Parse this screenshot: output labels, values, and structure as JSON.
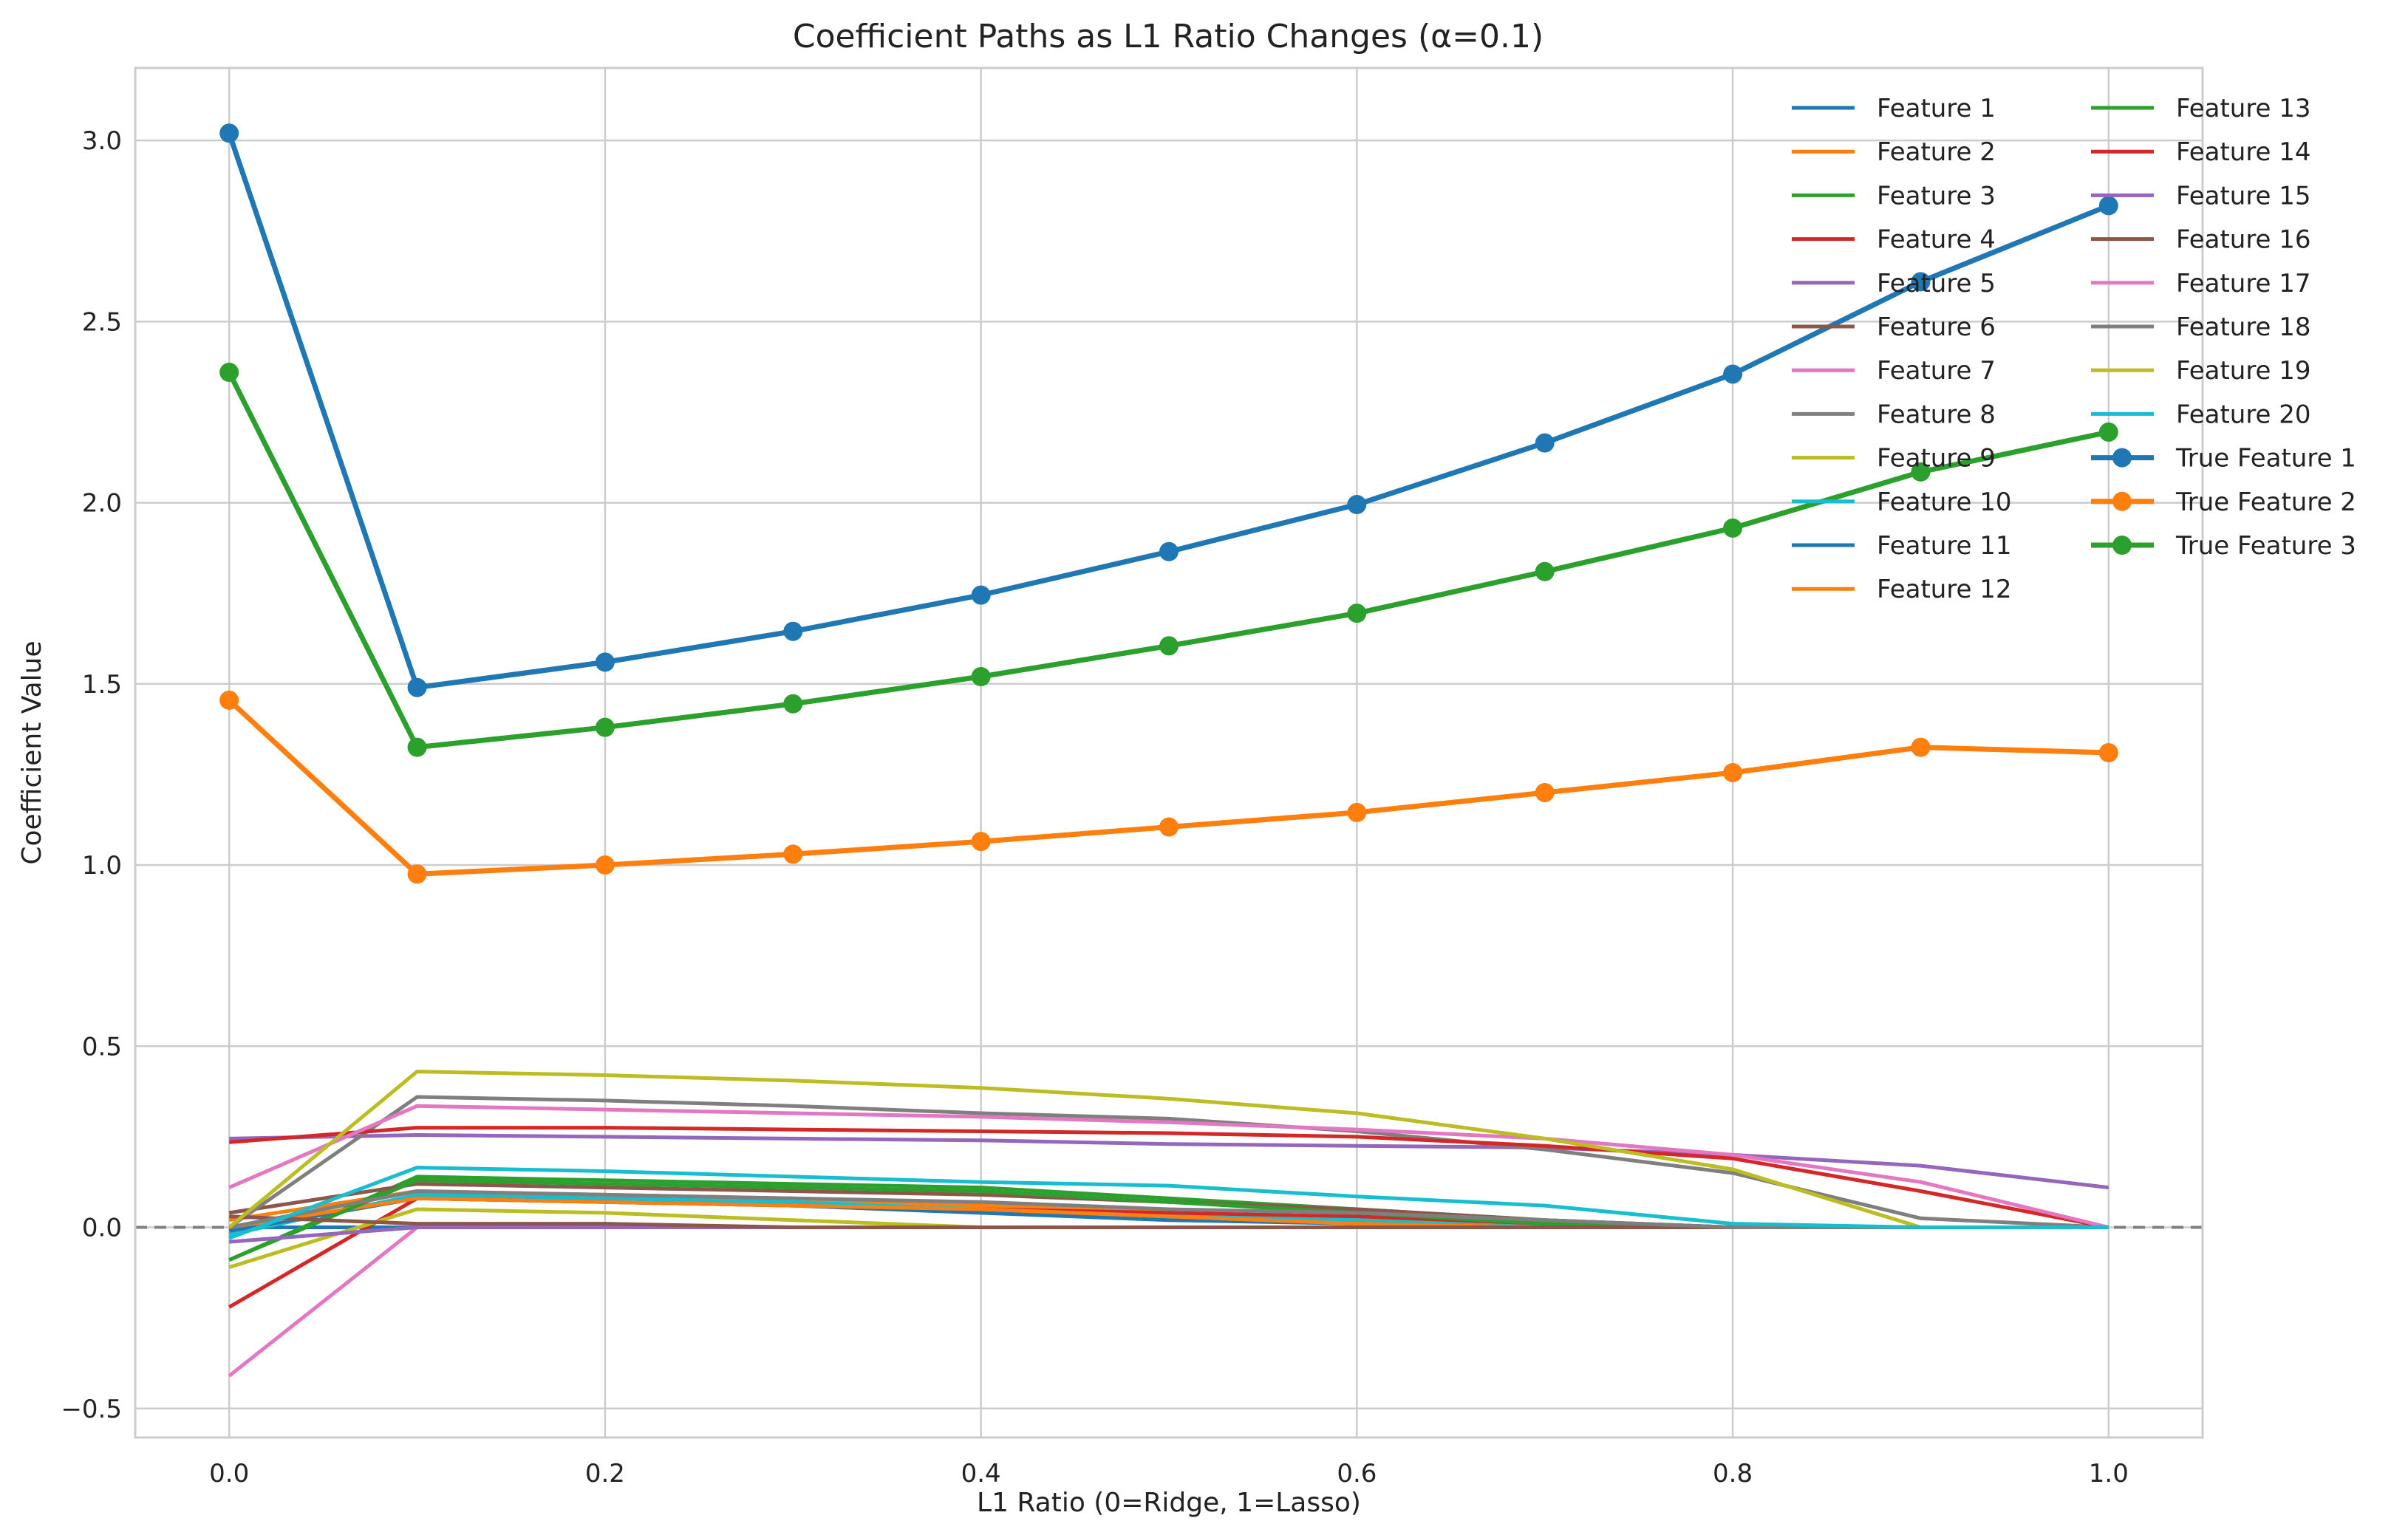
{
  "chart_data": {
    "type": "line",
    "title": "Coefficient Paths as L1 Ratio Changes (α=0.1)",
    "xlabel": "L1 Ratio (0=Ridge, 1=Lasso)",
    "ylabel": "Coefficient Value",
    "xlim": [
      -0.05,
      1.05
    ],
    "ylim": [
      -0.58,
      3.2
    ],
    "xticks": [
      0.0,
      0.2,
      0.4,
      0.6,
      0.8,
      1.0
    ],
    "xtick_labels": [
      "0.0",
      "0.2",
      "0.4",
      "0.6",
      "0.8",
      "1.0"
    ],
    "yticks": [
      -0.5,
      0.0,
      0.5,
      1.0,
      1.5,
      2.0,
      2.5,
      3.0
    ],
    "ytick_labels": [
      "−0.5",
      "0.0",
      "0.5",
      "1.0",
      "1.5",
      "2.0",
      "2.5",
      "3.0"
    ],
    "grid": true,
    "legend_position": "top-right",
    "legend_columns": 2,
    "reference_line": {
      "y": 0,
      "style": "dashed",
      "color": "#808080"
    },
    "x": [
      0.0,
      0.1,
      0.2,
      0.3,
      0.4,
      0.5,
      0.6,
      0.7,
      0.8,
      0.9,
      1.0
    ],
    "series": [
      {
        "name": "Feature 1",
        "color": "#1f77b4",
        "values": [
          0.0,
          0.0,
          0.0,
          0.0,
          0.0,
          0.0,
          0.0,
          0.0,
          0.0,
          0.0,
          0.0
        ]
      },
      {
        "name": "Feature 2",
        "color": "#ff7f0e",
        "values": [
          0.02,
          0.1,
          0.09,
          0.08,
          0.06,
          0.04,
          0.02,
          0.0,
          0.0,
          0.0,
          0.0
        ]
      },
      {
        "name": "Feature 3",
        "color": "#2ca02c",
        "values": [
          -0.09,
          0.14,
          0.13,
          0.12,
          0.11,
          0.08,
          0.05,
          0.02,
          0.0,
          0.0,
          0.0
        ]
      },
      {
        "name": "Feature 4",
        "color": "#d62728",
        "values": [
          -0.22,
          0.08,
          0.07,
          0.06,
          0.05,
          0.04,
          0.03,
          0.01,
          0.0,
          0.0,
          0.0
        ]
      },
      {
        "name": "Feature 5",
        "color": "#9467bd",
        "values": [
          0.245,
          0.255,
          0.25,
          0.245,
          0.24,
          0.23,
          0.225,
          0.22,
          0.2,
          0.17,
          0.11
        ]
      },
      {
        "name": "Feature 6",
        "color": "#8c564b",
        "values": [
          0.04,
          0.12,
          0.11,
          0.1,
          0.09,
          0.07,
          0.05,
          0.02,
          0.0,
          0.0,
          0.0
        ]
      },
      {
        "name": "Feature 7",
        "color": "#e377c2",
        "values": [
          -0.41,
          0.0,
          0.0,
          0.0,
          0.0,
          0.0,
          0.0,
          0.0,
          0.0,
          0.0,
          0.0
        ]
      },
      {
        "name": "Feature 8",
        "color": "#7f7f7f",
        "values": [
          0.0,
          0.36,
          0.35,
          0.335,
          0.315,
          0.3,
          0.265,
          0.215,
          0.15,
          0.025,
          0.0
        ]
      },
      {
        "name": "Feature 9",
        "color": "#bcbd22",
        "values": [
          -0.11,
          0.05,
          0.04,
          0.02,
          0.0,
          0.0,
          0.0,
          0.0,
          0.0,
          0.0,
          0.0
        ]
      },
      {
        "name": "Feature 10",
        "color": "#17becf",
        "values": [
          -0.02,
          0.09,
          0.08,
          0.07,
          0.05,
          0.03,
          0.02,
          0.0,
          0.0,
          0.0,
          0.0
        ]
      },
      {
        "name": "Feature 11",
        "color": "#1f77b4",
        "values": [
          -0.01,
          0.08,
          0.07,
          0.06,
          0.04,
          0.02,
          0.01,
          0.0,
          0.0,
          0.0,
          0.0
        ]
      },
      {
        "name": "Feature 12",
        "color": "#ff7f0e",
        "values": [
          0.0,
          0.08,
          0.07,
          0.06,
          0.05,
          0.03,
          0.01,
          0.0,
          0.0,
          0.0,
          0.0
        ]
      },
      {
        "name": "Feature 13",
        "color": "#2ca02c",
        "values": [
          -0.09,
          0.13,
          0.12,
          0.11,
          0.1,
          0.07,
          0.04,
          0.01,
          0.0,
          0.0,
          0.0
        ]
      },
      {
        "name": "Feature 14",
        "color": "#d62728",
        "values": [
          0.235,
          0.275,
          0.275,
          0.27,
          0.265,
          0.26,
          0.25,
          0.225,
          0.19,
          0.1,
          0.0
        ]
      },
      {
        "name": "Feature 15",
        "color": "#9467bd",
        "values": [
          -0.04,
          0.0,
          0.0,
          0.0,
          0.0,
          0.0,
          0.0,
          0.0,
          0.0,
          0.0,
          0.0
        ]
      },
      {
        "name": "Feature 16",
        "color": "#8c564b",
        "values": [
          0.03,
          0.01,
          0.01,
          0.0,
          0.0,
          0.0,
          0.0,
          0.0,
          0.0,
          0.0,
          0.0
        ]
      },
      {
        "name": "Feature 17",
        "color": "#e377c2",
        "values": [
          0.11,
          0.335,
          0.325,
          0.315,
          0.305,
          0.29,
          0.27,
          0.245,
          0.2,
          0.125,
          0.0
        ]
      },
      {
        "name": "Feature 18",
        "color": "#7f7f7f",
        "values": [
          0.0,
          0.1,
          0.09,
          0.08,
          0.07,
          0.05,
          0.04,
          0.02,
          0.0,
          0.0,
          0.0
        ]
      },
      {
        "name": "Feature 19",
        "color": "#bcbd22",
        "values": [
          0.0,
          0.43,
          0.42,
          0.405,
          0.385,
          0.355,
          0.315,
          0.245,
          0.16,
          0.0,
          0.0
        ]
      },
      {
        "name": "Feature 20",
        "color": "#17becf",
        "values": [
          -0.03,
          0.165,
          0.155,
          0.14,
          0.125,
          0.115,
          0.085,
          0.06,
          0.01,
          0.0,
          0.0
        ]
      },
      {
        "name": "True Feature 1",
        "color": "#1f77b4",
        "markers": true,
        "values": [
          3.02,
          1.49,
          1.56,
          1.645,
          1.745,
          1.865,
          1.995,
          2.165,
          2.355,
          2.61,
          2.82
        ]
      },
      {
        "name": "True Feature 2",
        "color": "#ff7f0e",
        "markers": true,
        "values": [
          1.455,
          0.975,
          1.0,
          1.03,
          1.065,
          1.105,
          1.145,
          1.2,
          1.255,
          1.325,
          1.31
        ]
      },
      {
        "name": "True Feature 3",
        "color": "#2ca02c",
        "markers": true,
        "values": [
          2.36,
          1.325,
          1.38,
          1.445,
          1.52,
          1.605,
          1.695,
          1.81,
          1.93,
          2.085,
          2.195
        ]
      }
    ]
  }
}
